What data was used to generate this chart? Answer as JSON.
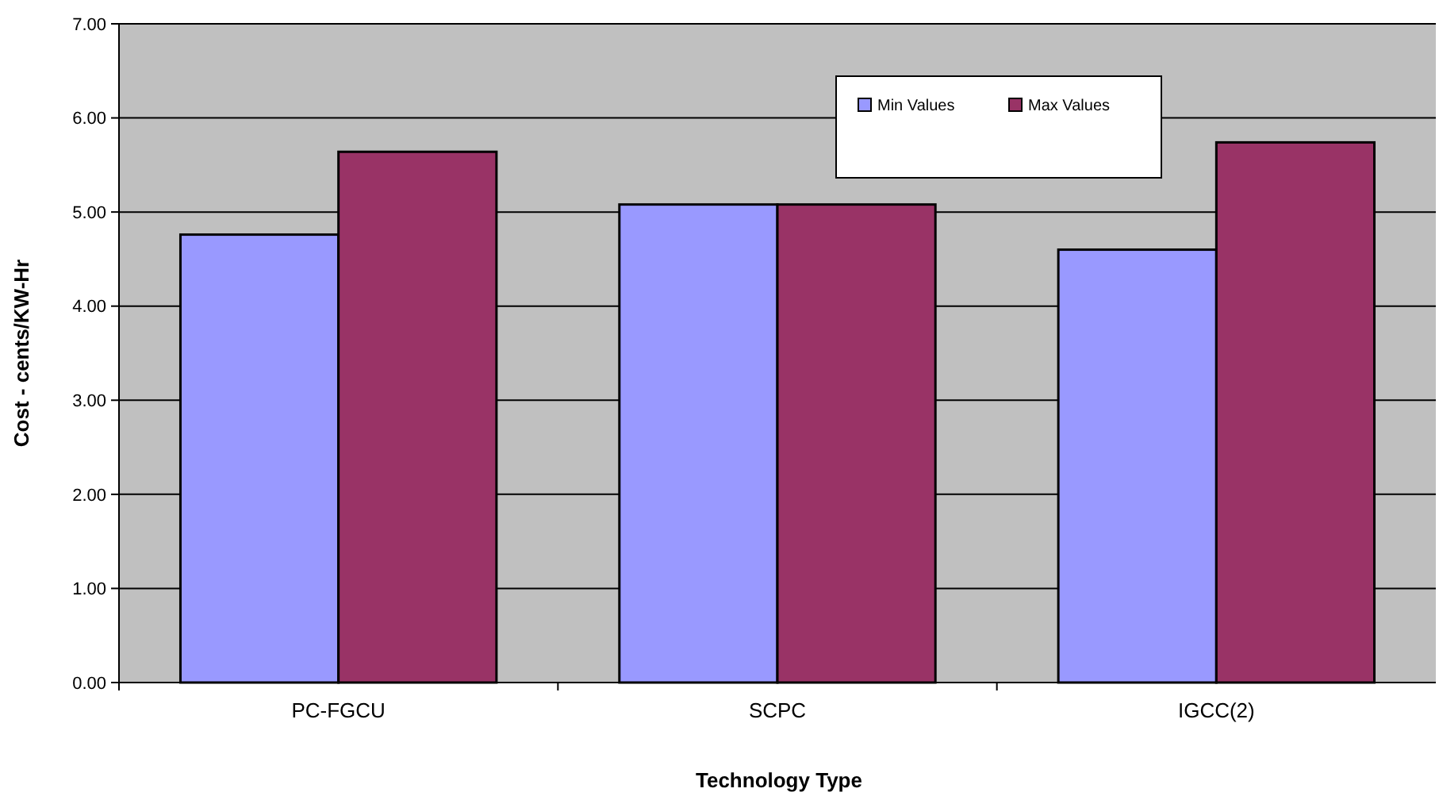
{
  "chart_data": {
    "type": "bar",
    "xlabel": "Technology Type",
    "ylabel": "Cost - cents/KW-Hr",
    "categories": [
      "PC-FGCU",
      "SCPC",
      "IGCC(2)"
    ],
    "series": [
      {
        "name": "Min Values",
        "color": "#9999ff",
        "values": [
          4.76,
          5.08,
          4.6
        ]
      },
      {
        "name": "Max Values",
        "color": "#993366",
        "values": [
          5.64,
          5.08,
          5.74
        ]
      }
    ],
    "ylim": [
      0,
      7
    ],
    "yticks": [
      {
        "value": 0,
        "label": "0.00"
      },
      {
        "value": 1,
        "label": "1.00"
      },
      {
        "value": 2,
        "label": "2.00"
      },
      {
        "value": 3,
        "label": "3.00"
      },
      {
        "value": 4,
        "label": "4.00"
      },
      {
        "value": 5,
        "label": "5.00"
      },
      {
        "value": 6,
        "label": "6.00"
      },
      {
        "value": 7,
        "label": "7.00"
      }
    ],
    "grid": "y",
    "legend": "top right"
  }
}
